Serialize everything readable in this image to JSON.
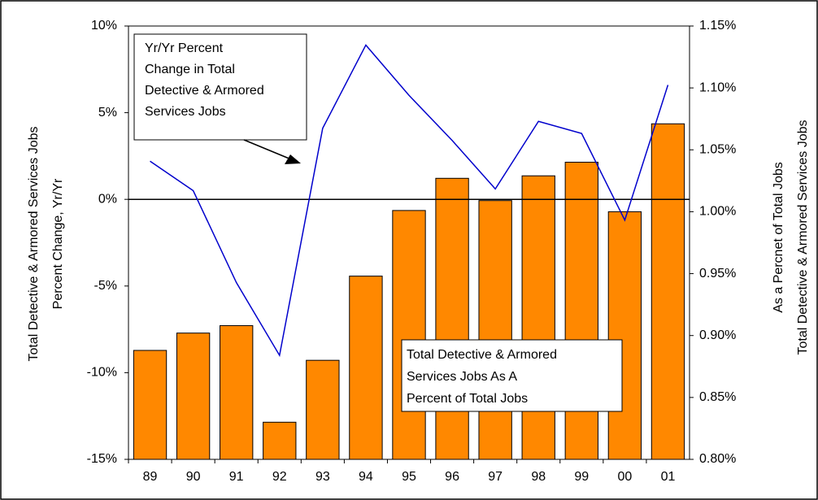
{
  "chart_data": {
    "type": "bar-line",
    "categories": [
      "89",
      "90",
      "91",
      "92",
      "93",
      "94",
      "95",
      "96",
      "97",
      "98",
      "99",
      "00",
      "01"
    ],
    "series": [
      {
        "type": "bar",
        "axis": "y2",
        "color": "#ff8800",
        "values": [
          0.888,
          0.902,
          0.908,
          0.83,
          0.88,
          0.948,
          1.001,
          1.027,
          1.009,
          1.029,
          1.04,
          1.0,
          1.071
        ]
      },
      {
        "type": "line",
        "axis": "y",
        "color": "#0000cc",
        "values": [
          2.2,
          0.5,
          -4.8,
          -9.0,
          4.1,
          8.9,
          6.0,
          3.4,
          0.6,
          4.5,
          3.8,
          -1.2,
          6.6
        ]
      }
    ],
    "ylim": [
      -15,
      10
    ],
    "yticks": [
      {
        "value": -15,
        "label": "-15%"
      },
      {
        "value": -10,
        "label": "-10%"
      },
      {
        "value": -5,
        "label": "-5%"
      },
      {
        "value": 0,
        "label": "0%"
      },
      {
        "value": 5,
        "label": "5%"
      },
      {
        "value": 10,
        "label": "10%"
      }
    ],
    "y2lim": [
      0.8,
      1.15
    ],
    "y2ticks": [
      {
        "value": 0.8,
        "label": "0.80%"
      },
      {
        "value": 0.85,
        "label": "0.85%"
      },
      {
        "value": 0.9,
        "label": "0.90%"
      },
      {
        "value": 0.95,
        "label": "0.95%"
      },
      {
        "value": 1.0,
        "label": "1.00%"
      },
      {
        "value": 1.05,
        "label": "1.05%"
      },
      {
        "value": 1.1,
        "label": "1.10%"
      },
      {
        "value": 1.15,
        "label": "1.15%"
      }
    ],
    "ylabel": [
      "Total Detective & Armored Services Jobs",
      "Percent Change, Yr/Yr"
    ],
    "y2label": [
      "As a Percnet of Total Jobs",
      "Total Detective & Armored Services Jobs"
    ],
    "annotations": [
      [
        "Yr/Yr Percent",
        "Change in Total",
        "Detective & Armored",
        "Services Jobs"
      ],
      [
        "Total Detective & Armored",
        "Services Jobs As A",
        "Percent of Total Jobs"
      ]
    ]
  }
}
